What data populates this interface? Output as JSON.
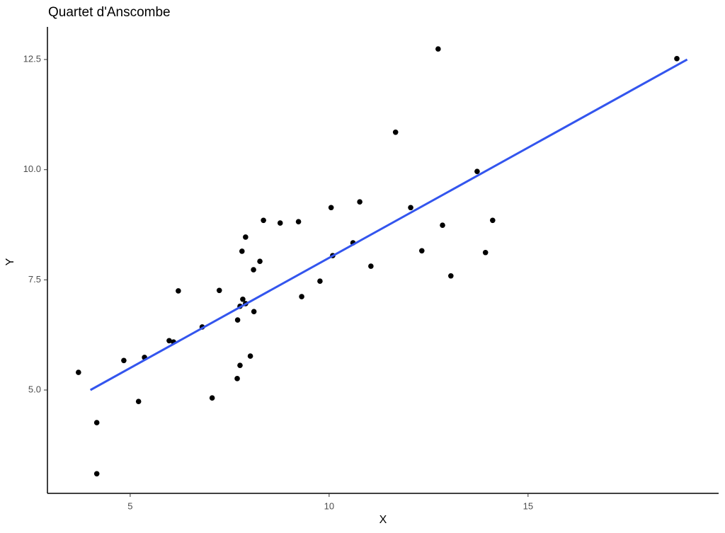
{
  "chart_data": {
    "type": "scatter",
    "title": "Quartet d'Anscombe",
    "x_label": "X",
    "y_label": "Y",
    "x": [
      3.7,
      4.16,
      4.16,
      4.84,
      5.21,
      5.36,
      5.98,
      6.09,
      6.21,
      6.81,
      7.06,
      7.24,
      7.69,
      7.7,
      7.76,
      7.76,
      7.81,
      7.83,
      7.9,
      7.9,
      8.02,
      8.1,
      8.11,
      8.26,
      8.35,
      8.77,
      9.23,
      9.31,
      9.77,
      10.05,
      10.09,
      10.6,
      10.77,
      11.05,
      11.67,
      12.05,
      12.33,
      12.74,
      12.85,
      13.06,
      13.72,
      13.93,
      14.11,
      18.74
    ],
    "y": [
      5.4,
      4.26,
      3.1,
      5.67,
      4.74,
      5.74,
      6.12,
      6.09,
      7.25,
      6.43,
      4.82,
      7.26,
      5.26,
      6.59,
      6.9,
      5.56,
      8.15,
      7.06,
      8.47,
      6.96,
      5.77,
      7.73,
      6.78,
      7.92,
      8.85,
      8.79,
      8.82,
      7.12,
      7.47,
      9.14,
      8.05,
      8.34,
      9.27,
      7.81,
      10.85,
      9.14,
      8.16,
      12.74,
      8.74,
      7.59,
      9.96,
      8.12,
      8.85,
      12.52
    ],
    "color": "#000000",
    "trend_line": {
      "x": [
        4,
        19
      ],
      "y": [
        5,
        12.5
      ],
      "color": "#3355ee"
    },
    "xlim": [
      2.92,
      19.79
    ],
    "ylim": [
      2.655,
      13.24
    ],
    "xticks": [
      5,
      10,
      15
    ],
    "yticks": [
      {
        "value": 5,
        "label": "5.0"
      },
      {
        "value": 7.5,
        "label": "7.5"
      },
      {
        "value": 10,
        "label": "10.0"
      },
      {
        "value": 12.5,
        "label": "12.5"
      }
    ]
  }
}
